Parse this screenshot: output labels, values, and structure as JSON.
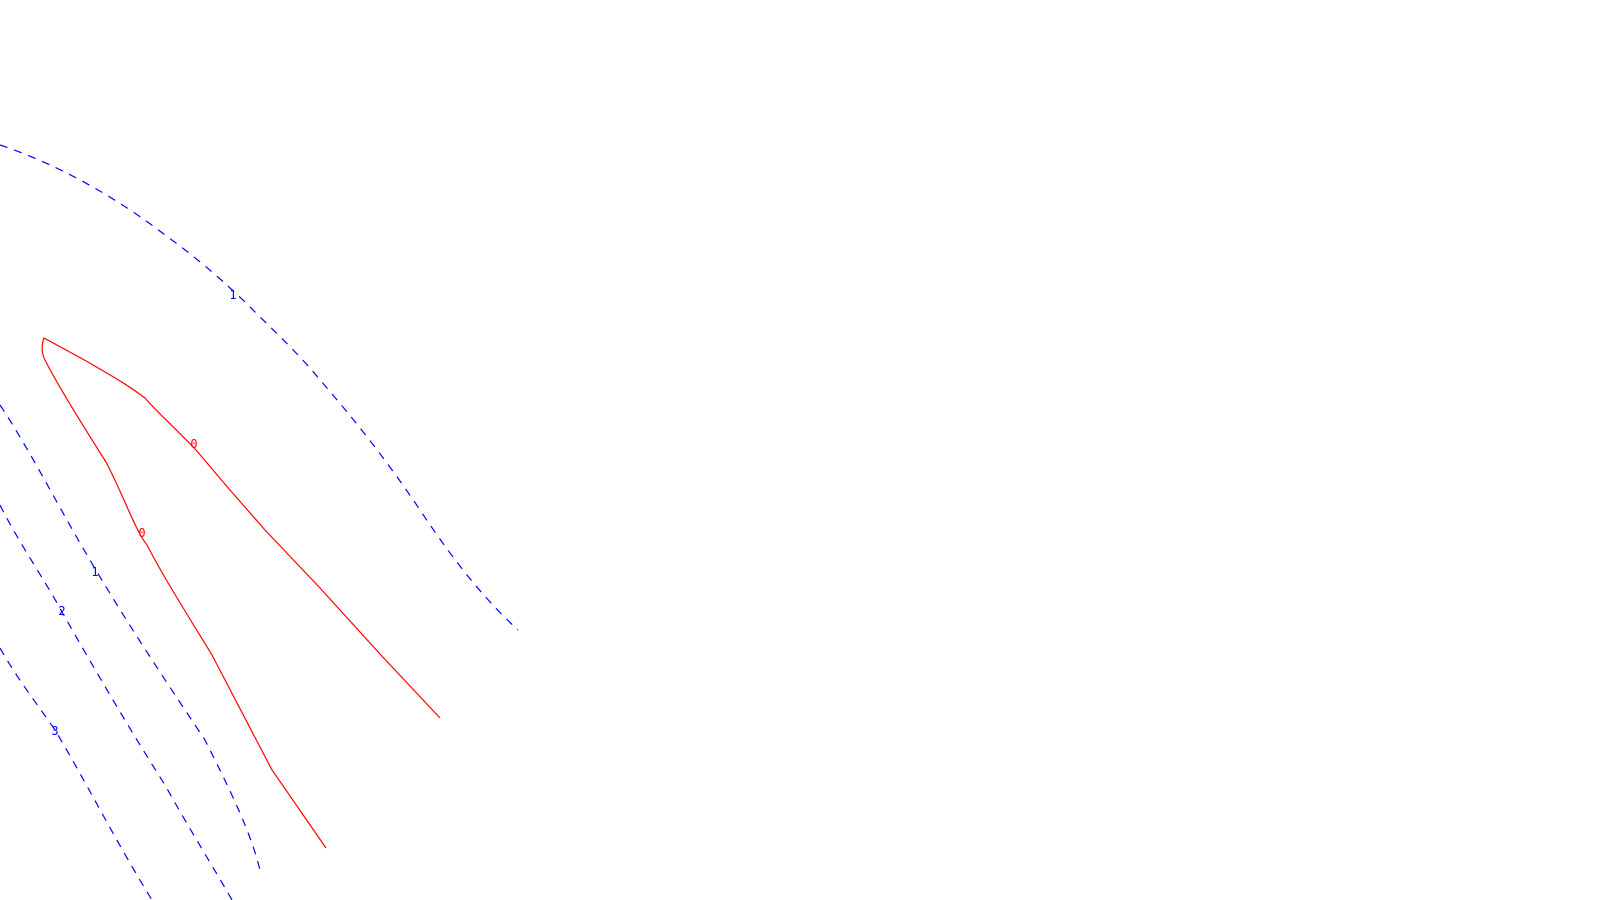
{
  "colors": {
    "background": "#ffffff",
    "zero_contour": "#ff0000",
    "positive_contour": "#0000ff"
  },
  "contours": [
    {
      "id": "contour-0-loop",
      "level": "0",
      "color": "#ff0000",
      "style": "solid",
      "labels": [
        "0",
        "0"
      ]
    },
    {
      "id": "contour-1-upper",
      "level": "1",
      "color": "#0000ff",
      "style": "dashed",
      "labels": [
        "1"
      ]
    },
    {
      "id": "contour-1-lower",
      "level": "1",
      "color": "#0000ff",
      "style": "dashed",
      "labels": [
        "1"
      ]
    },
    {
      "id": "contour-2",
      "level": "2",
      "color": "#0000ff",
      "style": "dashed",
      "labels": [
        "2"
      ]
    },
    {
      "id": "contour-3",
      "level": "3",
      "color": "#0000ff",
      "style": "dashed",
      "labels": [
        "3"
      ]
    }
  ]
}
